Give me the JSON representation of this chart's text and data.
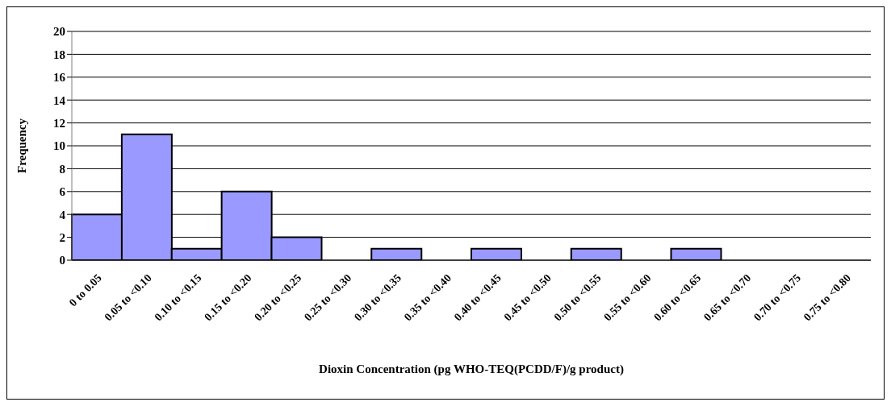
{
  "chart_data": {
    "type": "bar",
    "xlabel": "Dioxin Concentration (pg WHO-TEQ(PCDD/F)/g product)",
    "ylabel": "Frequency",
    "categories": [
      "0 to 0.05",
      "0.05 to <0.10",
      "0.10 to <0.15",
      "0.15 to <0.20",
      "0.20 to <0.25",
      "0.25 to <0.30",
      "0.30 to <0.35",
      "0.35 to <0.40",
      "0.40 to <0.45",
      "0.45 to <0.50",
      "0.50 to <0.55",
      "0.55 to <0.60",
      "0.60 to <0.65",
      "0.65 to <0.70",
      "0.70 to <0.75",
      "0.75 to <0.80"
    ],
    "values": [
      4,
      11,
      1,
      6,
      2,
      0,
      1,
      0,
      1,
      0,
      1,
      0,
      1,
      0,
      0,
      0
    ],
    "color": "#9999ff",
    "ylim": [
      0,
      20
    ],
    "yticks": [
      0,
      2,
      4,
      6,
      8,
      10,
      12,
      14,
      16,
      18,
      20
    ],
    "grid": "y"
  }
}
